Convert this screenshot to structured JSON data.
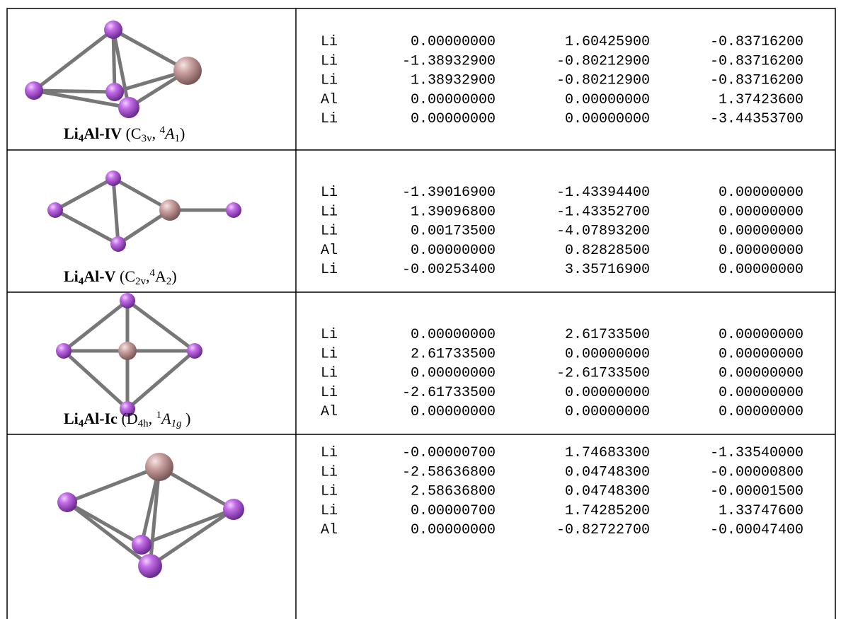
{
  "rows": [
    {
      "caption": [
        "Li",
        "4",
        "Al-IV",
        " (C",
        "3v",
        ",  ",
        "4",
        "A",
        "1",
        ")"
      ],
      "atoms": [
        [
          "Li",
          "0.00000000",
          "1.60425900",
          "-0.83716200"
        ],
        [
          "Li",
          "-1.38932900",
          "-0.80212900",
          "-0.83716200"
        ],
        [
          "Li",
          "1.38932900",
          "-0.80212900",
          "-0.83716200"
        ],
        [
          "Al",
          "0.00000000",
          "0.00000000",
          "1.37423600"
        ],
        [
          "Li",
          "0.00000000",
          "0.00000000",
          "-3.44353700"
        ]
      ]
    },
    {
      "caption": [
        "Li",
        "4",
        "Al-V",
        " (C",
        "2v",
        ",",
        "4",
        "A",
        "2",
        ")"
      ],
      "atoms": [
        [
          "Li",
          "-1.39016900",
          "-1.43394400",
          "0.00000000"
        ],
        [
          "Li",
          "1.39096800",
          "-1.43352700",
          "0.00000000"
        ],
        [
          "Li",
          "0.00173500",
          "-4.07893200",
          "0.00000000"
        ],
        [
          "Al",
          "0.00000000",
          "0.82828500",
          "0.00000000"
        ],
        [
          "Li",
          "-0.00253400",
          "3.35716900",
          "0.00000000"
        ]
      ]
    },
    {
      "caption": [
        "Li",
        "4",
        "Al-Ic",
        " (D",
        "4h",
        ",  ",
        "1",
        "A",
        "1g",
        "  )"
      ],
      "atoms": [
        [
          "Li",
          "0.00000000",
          "2.61733500",
          "0.00000000"
        ],
        [
          "Li",
          "2.61733500",
          "0.00000000",
          "0.00000000"
        ],
        [
          "Li",
          "0.00000000",
          "-2.61733500",
          "0.00000000"
        ],
        [
          "Li",
          "-2.61733500",
          "0.00000000",
          "0.00000000"
        ],
        [
          "Al",
          "0.00000000",
          "0.00000000",
          "0.00000000"
        ]
      ]
    },
    {
      "atoms": [
        [
          "Li",
          "-0.00000700",
          "1.74683300",
          "-1.33540000"
        ],
        [
          "Li",
          "-2.58636800",
          "0.04748300",
          "-0.00000800"
        ],
        [
          "Li",
          "2.58636800",
          "0.04748300",
          "-0.00001500"
        ],
        [
          "Li",
          "0.00000700",
          "1.74285200",
          "1.33747600"
        ],
        [
          "Al",
          "0.00000000",
          "-0.82722700",
          "-0.00047400"
        ]
      ]
    }
  ]
}
